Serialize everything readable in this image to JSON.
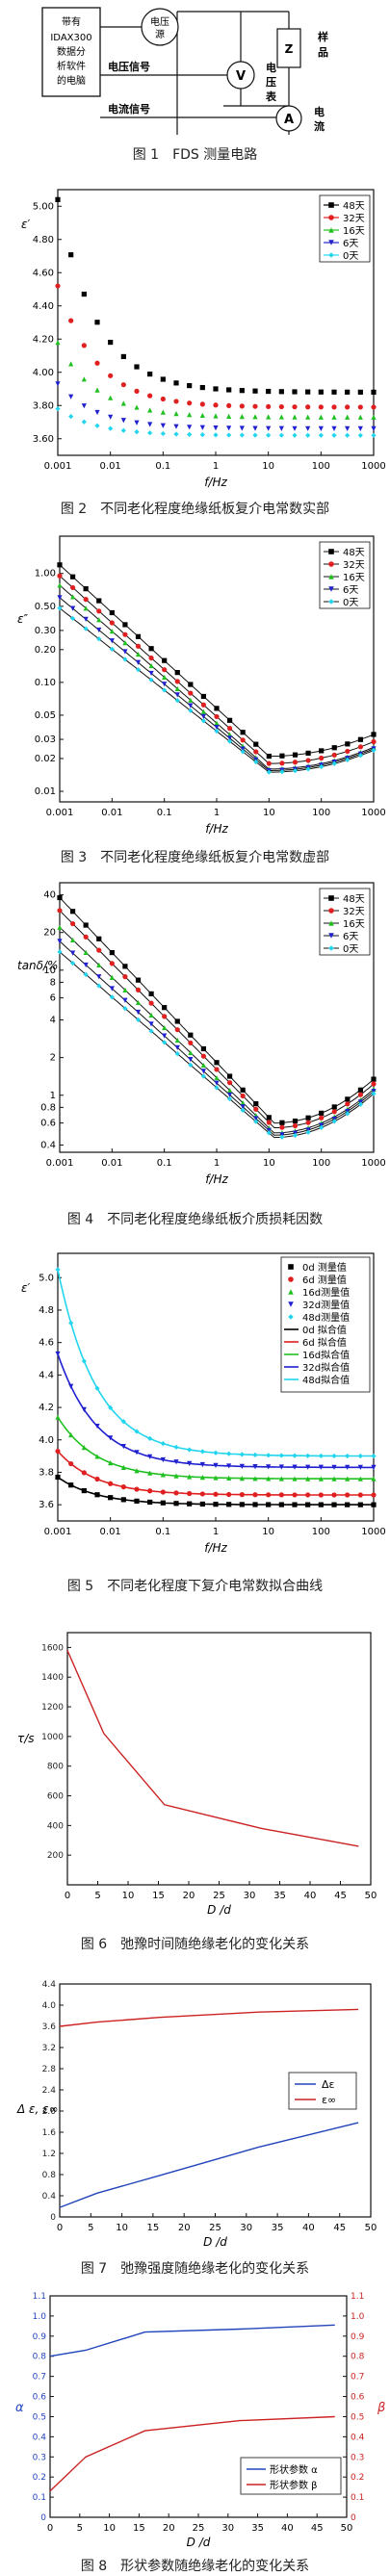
{
  "fig1": {
    "caption": "图 1　FDS 测量电路",
    "computer_box": [
      "带有",
      "IDAX300",
      "数据分",
      "析软件",
      "的电脑"
    ],
    "voltage_source": [
      "电压",
      "源"
    ],
    "voltage_signal": "电压信号",
    "current_signal": "电流信号",
    "sample": [
      "样",
      "品"
    ],
    "sample_symbol": "Z",
    "voltmeter_symbol": "V",
    "voltmeter_label": [
      "电",
      "压",
      "表"
    ],
    "ammeter_symbol": "A",
    "ammeter_label": [
      "电",
      "流",
      "表"
    ]
  },
  "captions": {
    "fig2": "图 2　不同老化程度绝缘纸板复介电常数实部",
    "fig3": "图 3　不同老化程度绝缘纸板复介电常数虚部",
    "fig4": "图 4　不同老化程度绝缘纸板介质损耗因数",
    "fig5": "图 5　不同老化程度下复介电常数拟合曲线",
    "fig6": "图 6　弛豫时间随绝缘老化的变化关系",
    "fig7": "图 7　弛豫强度随绝缘老化的变化关系",
    "fig8": "图 8　形状参数随绝缘老化的变化关系"
  },
  "chart_data": [
    {
      "id": "fig2",
      "type": "scatter",
      "xlabel": "f/Hz",
      "ylabel": "ε′",
      "x_scale": "log",
      "x_ticks": [
        "0.001",
        "0.01",
        "0.1",
        "1",
        "10",
        "100",
        "1000"
      ],
      "y_ticks": [
        "3.60",
        "3.80",
        "4.00",
        "4.20",
        "4.40",
        "4.60",
        "4.80",
        "5.00"
      ],
      "ylim": [
        3.5,
        5.1
      ],
      "legend_position": "top-right",
      "series_labels": [
        "48天",
        "32天",
        "16天",
        "6天",
        "0天"
      ],
      "colors": [
        "#000000",
        "#e02020",
        "#21c021",
        "#2020d0",
        "#22d5ee"
      ],
      "markers": [
        "square",
        "circle",
        "triangle-up",
        "triangle-down",
        "diamond"
      ],
      "start_values": [
        5.04,
        4.52,
        4.18,
        3.93,
        3.78
      ],
      "end_values": [
        3.88,
        3.79,
        3.73,
        3.66,
        3.62
      ],
      "decay": 0.55
    },
    {
      "id": "fig3",
      "type": "scatter",
      "xlabel": "f/Hz",
      "ylabel": "ε″",
      "x_scale": "log",
      "y_scale": "log",
      "x_ticks": [
        "0.001",
        "0.01",
        "0.1",
        "1",
        "10",
        "100",
        "1000"
      ],
      "y_ticks": [
        "0.01",
        "0.02",
        "0.03",
        "0.05",
        "0.10",
        "0.20",
        "0.30",
        "0.50",
        "1.00"
      ],
      "legend_position": "top-right",
      "series_labels": [
        "48天",
        "32天",
        "16天",
        "6天",
        "0天"
      ],
      "colors": [
        "#000000",
        "#e02020",
        "#21c021",
        "#2020d0",
        "#22d5ee"
      ],
      "markers": [
        "square",
        "circle",
        "triangle-up",
        "triangle-down",
        "diamond"
      ]
    },
    {
      "id": "fig4",
      "type": "scatter",
      "xlabel": "f/Hz",
      "ylabel": "tanδ/%",
      "x_scale": "log",
      "y_scale": "log",
      "x_ticks": [
        "0.001",
        "0.01",
        "0.1",
        "1",
        "10",
        "100",
        "1000"
      ],
      "y_ticks": [
        "0.4",
        "0.6",
        "0.8",
        "1",
        "2",
        "4",
        "6",
        "8",
        "10",
        "20",
        "40"
      ],
      "legend_position": "top-right",
      "series_labels": [
        "48天",
        "32天",
        "16天",
        "6天",
        "0天"
      ],
      "colors": [
        "#000000",
        "#e02020",
        "#21c021",
        "#2020d0",
        "#22d5ee"
      ],
      "markers": [
        "square",
        "circle",
        "triangle-up",
        "triangle-down",
        "diamond"
      ]
    },
    {
      "id": "fig5",
      "type": "scatter",
      "xlabel": "f/Hz",
      "ylabel": "ε′",
      "x_scale": "log",
      "x_ticks": [
        "0.001",
        "0.01",
        "0.1",
        "1",
        "10",
        "100",
        "1000"
      ],
      "y_ticks": [
        "3.6",
        "3.8",
        "4.0",
        "4.2",
        "4.4",
        "4.6",
        "4.8",
        "5.0"
      ],
      "legend_position": "top-right",
      "legend_measured": [
        "0d 测量值",
        "6d 测量值",
        "16d测量值",
        "32d测量值",
        "48d测量值"
      ],
      "legend_fit": [
        "0d 拟合值",
        "6d 拟合值",
        "16d拟合值",
        "32d拟合值",
        "48d拟合值"
      ],
      "colors": [
        "#000000",
        "#e02020",
        "#21c021",
        "#2020d0",
        "#22d5ee"
      ],
      "start_values": [
        3.77,
        3.93,
        4.14,
        4.53,
        5.05
      ],
      "end_values": [
        3.6,
        3.66,
        3.76,
        3.83,
        3.9
      ]
    },
    {
      "id": "fig6",
      "type": "line",
      "xlabel": "D /d",
      "ylabel": "τ/s",
      "xlim": [
        0,
        50
      ],
      "ylim": [
        0,
        1700
      ],
      "x_ticks": [
        "0",
        "5",
        "10",
        "15",
        "20",
        "25",
        "30",
        "35",
        "40",
        "45",
        "50"
      ],
      "y_ticks": [
        "200",
        "400",
        "600",
        "800",
        "1000",
        "1200",
        "1400",
        "1600"
      ],
      "color": "#cc2222",
      "x": [
        0,
        6,
        16,
        32,
        48
      ],
      "y": [
        1580,
        1020,
        540,
        380,
        260
      ]
    },
    {
      "id": "fig7",
      "type": "line",
      "xlabel": "D /d",
      "ylabel": "Δ ε, ε∞",
      "xlim": [
        0,
        50
      ],
      "ylim": [
        0,
        4.4
      ],
      "x_ticks": [
        "0",
        "5",
        "10",
        "15",
        "20",
        "25",
        "30",
        "35",
        "40",
        "45",
        "50"
      ],
      "y_ticks": [
        "0",
        "0.4",
        "0.8",
        "1.2",
        "1.6",
        "2.0",
        "2.4",
        "2.8",
        "3.2",
        "3.6",
        "4.0",
        "4.4"
      ],
      "legend_position": "right",
      "series": [
        {
          "name": "Δε",
          "color": "#2244bb",
          "x": [
            0,
            6,
            16,
            32,
            48
          ],
          "y": [
            0.18,
            0.45,
            0.78,
            1.32,
            1.78
          ]
        },
        {
          "name": "ε∞",
          "color": "#cc2222",
          "x": [
            0,
            6,
            16,
            32,
            48
          ],
          "y": [
            3.6,
            3.68,
            3.77,
            3.87,
            3.92
          ]
        }
      ]
    },
    {
      "id": "fig8",
      "type": "line",
      "xlabel": "D /d",
      "ylabel_left": "α",
      "ylabel_right": "β",
      "xlim": [
        0,
        50
      ],
      "ylim": [
        0,
        1.1
      ],
      "x_ticks": [
        "0",
        "5",
        "10",
        "15",
        "20",
        "25",
        "30",
        "35",
        "40",
        "45",
        "50"
      ],
      "y_ticks": [
        "0",
        "0.1",
        "0.2",
        "0.3",
        "0.4",
        "0.5",
        "0.6",
        "0.7",
        "0.8",
        "0.9",
        "1.0",
        "1.1"
      ],
      "legend_position": "bottom-right",
      "series": [
        {
          "name": "形状参数 α",
          "color": "#2244bb",
          "axis": "left",
          "x": [
            0,
            6,
            16,
            32,
            48
          ],
          "y": [
            0.8,
            0.83,
            0.92,
            0.935,
            0.955
          ]
        },
        {
          "name": "形状参数 β",
          "color": "#cc2222",
          "axis": "right",
          "x": [
            0,
            6,
            16,
            32,
            48
          ],
          "y": [
            0.13,
            0.3,
            0.43,
            0.48,
            0.5
          ]
        }
      ]
    }
  ]
}
